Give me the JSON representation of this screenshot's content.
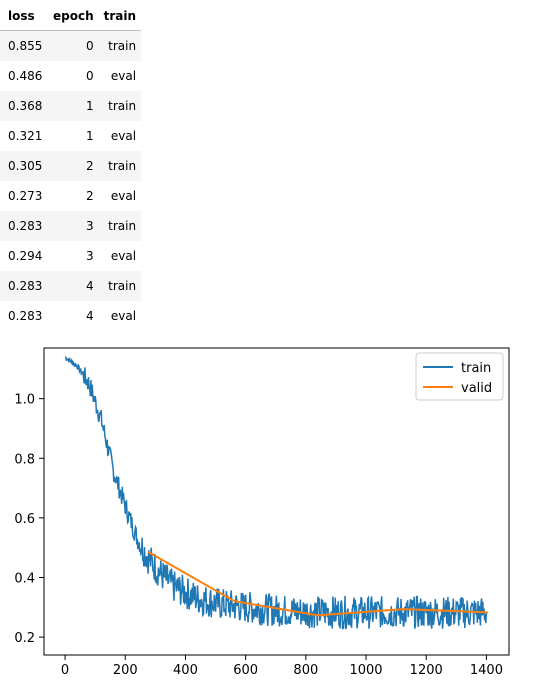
{
  "table": {
    "columns": [
      "loss",
      "epoch",
      "train"
    ],
    "rows": [
      [
        "0.855",
        "0",
        "train"
      ],
      [
        "0.486",
        "0",
        "eval"
      ],
      [
        "0.368",
        "1",
        "train"
      ],
      [
        "0.321",
        "1",
        "eval"
      ],
      [
        "0.305",
        "2",
        "train"
      ],
      [
        "0.273",
        "2",
        "eval"
      ],
      [
        "0.283",
        "3",
        "train"
      ],
      [
        "0.294",
        "3",
        "eval"
      ],
      [
        "0.283",
        "4",
        "train"
      ],
      [
        "0.283",
        "4",
        "eval"
      ]
    ]
  },
  "chart_data": {
    "type": "line",
    "title": "",
    "xlabel": "",
    "ylabel": "",
    "xlim": [
      -70,
      1475
    ],
    "ylim": [
      0.14,
      1.17
    ],
    "xticks": [
      0,
      200,
      400,
      600,
      800,
      1000,
      1200,
      1400
    ],
    "yticks": [
      0.2,
      0.4,
      0.6,
      0.8,
      1.0
    ],
    "grid": false,
    "legend": "top-right",
    "series": [
      {
        "name": "train",
        "color": "#1f77b4",
        "x": [
          0,
          40,
          80,
          120,
          160,
          200,
          240,
          280,
          320,
          360,
          400,
          440,
          480,
          520,
          560,
          600,
          700,
          800,
          900,
          1000,
          1100,
          1200,
          1300,
          1400
        ],
        "values": [
          1.14,
          1.11,
          1.05,
          0.93,
          0.76,
          0.64,
          0.53,
          0.46,
          0.41,
          0.37,
          0.35,
          0.33,
          0.32,
          0.31,
          0.305,
          0.3,
          0.29,
          0.285,
          0.283,
          0.283,
          0.283,
          0.283,
          0.283,
          0.283
        ],
        "noise": 0.05
      },
      {
        "name": "valid",
        "color": "#ff7f0e",
        "x": [
          276,
          562,
          840,
          1124,
          1405
        ],
        "values": [
          0.486,
          0.321,
          0.273,
          0.294,
          0.283
        ]
      }
    ]
  }
}
